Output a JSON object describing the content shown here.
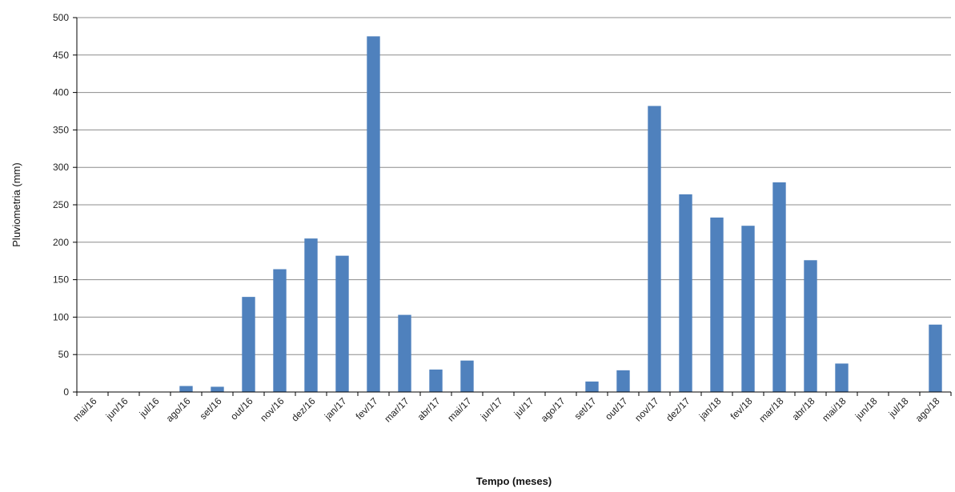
{
  "chart_data": {
    "type": "bar",
    "title": "",
    "xlabel": "Tempo (meses)",
    "ylabel": "Pluviometria (mm)",
    "ylim": [
      0,
      500
    ],
    "yticks": [
      0,
      50,
      100,
      150,
      200,
      250,
      300,
      350,
      400,
      450,
      500
    ],
    "grid": true,
    "bar_color": "#4f81bd",
    "categories": [
      "mai/16",
      "jun/16",
      "jul/16",
      "ago/16",
      "set/16",
      "out/16",
      "nov/16",
      "dez/16",
      "jan/17",
      "fev/17",
      "mar/17",
      "abr/17",
      "mai/17",
      "jun/17",
      "jul/17",
      "ago/17",
      "set/17",
      "out/17",
      "nov/17",
      "dez/17",
      "jan/18",
      "fev/18",
      "mar/18",
      "abr/18",
      "mai/18",
      "jun/18",
      "jul/18",
      "ago/18"
    ],
    "values": [
      0,
      0,
      0,
      8,
      7,
      127,
      164,
      205,
      182,
      475,
      103,
      30,
      42,
      0,
      0,
      0,
      14,
      29,
      382,
      264,
      233,
      222,
      280,
      176,
      38,
      0,
      0,
      90
    ]
  }
}
